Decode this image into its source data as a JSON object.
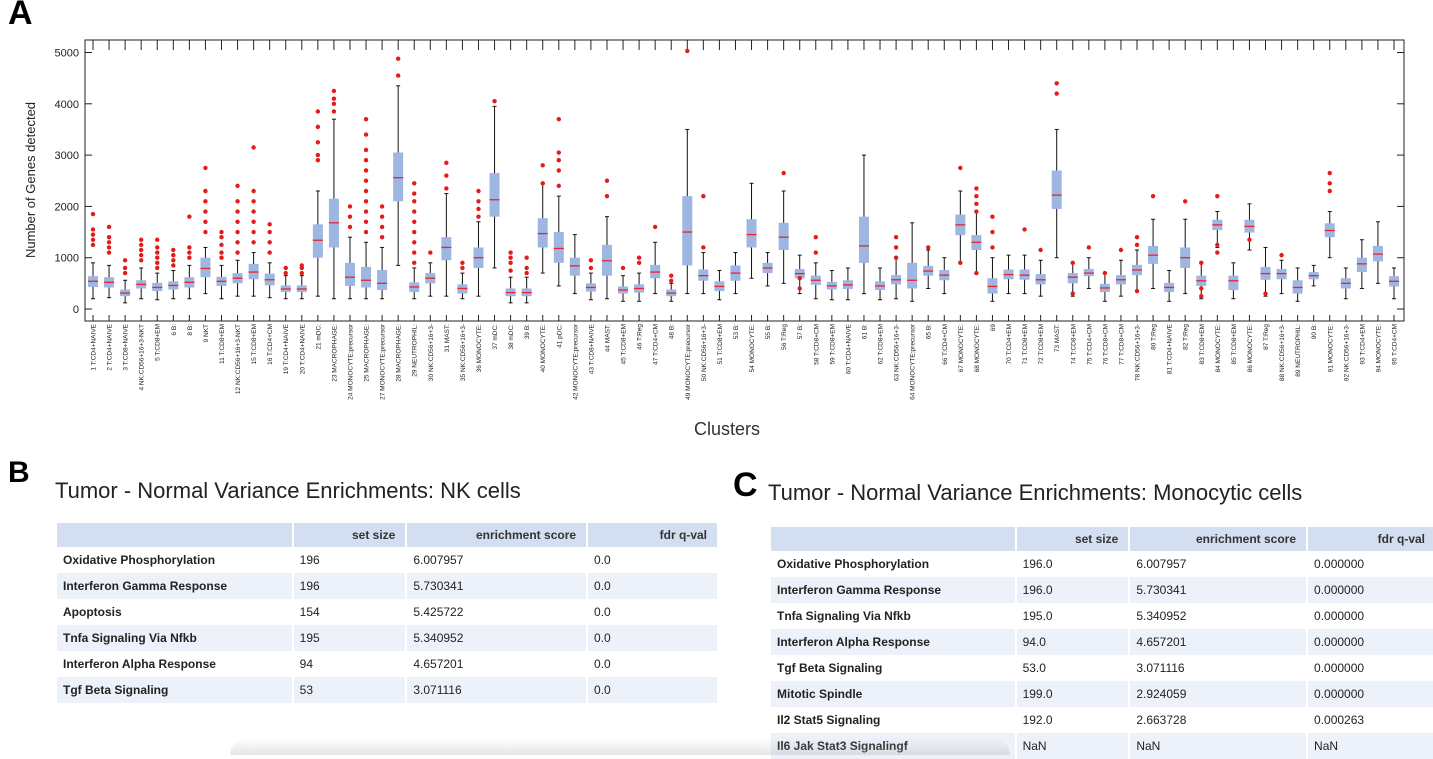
{
  "panel_labels": {
    "a": "A",
    "b": "B",
    "c": "C"
  },
  "chart_data": {
    "type": "box",
    "title": "",
    "xlabel": "Clusters",
    "ylabel": "Number of Genes detected",
    "ylim": [
      -100,
      5200
    ],
    "yticks": [
      0,
      1000,
      2000,
      3000,
      4000,
      5000
    ],
    "colors": {
      "box": "#9db6e2",
      "median": "#e8242f",
      "outlier": "#e31b1b",
      "whisker": "#111111"
    },
    "categories": [
      "1 T:CD4+NAIVE",
      "2 T:CD4+NAIVE",
      "3 T:CD8+NAIVE",
      "4 NK:CD56+16+3-NKT",
      "5 T:CD8+EM",
      "6 B:",
      "8 B:",
      "9 NKT",
      "11 T:CD8+EM",
      "12 NK:CD56+16+3-NKT",
      "15 T:CD8+EM",
      "16 T:CD4+CM",
      "19 T:CD4+NAIVE",
      "20 T:CD4+NAIVE",
      "21 mDC:",
      "23 MACROPHAGE:",
      "24 MONOCYTE:precursor",
      "25 MACROPHAGE:",
      "27 MONOCYTE:precursor",
      "28 MACROPHAGE:",
      "29 NEUTROPHIL:",
      "30 NK:CD56+16+3-",
      "31 MAST:",
      "35 NK:CD56+16+3-",
      "36 MONOCYTE:",
      "37 mDC:",
      "38 mDC:",
      "39 B:",
      "40 MONOCYTE:",
      "41 pDC:",
      "42 MONOCYTE:precursor",
      "43 T:CD8+NAIVE",
      "44 MAST:",
      "45 T:CD8+EM",
      "46 T:Reg",
      "47 T:CD4+CM",
      "48 B:",
      "49 MONOCYTE:precursor",
      "50 NK:CD56+16+3-",
      "51 T:CD8+EM",
      "53 B:",
      "54 MONOCYTE:",
      "55 B:",
      "56 T:Reg",
      "57 B:",
      "58 T:CD8+CM",
      "59 T:CD8+EM",
      "60 T:CD4+NAIVE",
      "61 B:",
      "62 T:CD8+EM",
      "63 NK:CD56+16+3-",
      "64 MONOCYTE:precursor",
      "65 B:",
      "66 T:CD4+CM",
      "67 MONOCYTE:",
      "68 MONOCYTE:",
      "69",
      "70 T:CD4+EM",
      "71 T:CD8+EM",
      "72 T:CD8+EM",
      "73 MAST:",
      "74 T:CD8+EM",
      "75 T:CD4+CM",
      "76 T:CD8+CM",
      "77 T:CD8+CM",
      "78 NK:CD56+16+3-",
      "80 T:Reg",
      "81 T:CD4+NAIVE",
      "82 T:Reg",
      "83 T:CD8+EM",
      "84 MONOCYTE:",
      "85 T:CD8+EM",
      "86 MONOCYTE:",
      "87 T:Reg",
      "88 NK:CD56+16+3-",
      "89 NEUTROPHIL:",
      "90 B:",
      "91 MONOCYTE:",
      "92 NK:CD56+16+3-",
      "93 T:CD4+EM",
      "94 MONOCYTE:",
      "95 T:CD4+CM"
    ],
    "boxes": [
      {
        "q1": 430,
        "med": 540,
        "q3": 640,
        "lo": 200,
        "hi": 900
      },
      {
        "q1": 420,
        "med": 520,
        "q3": 620,
        "lo": 220,
        "hi": 850
      },
      {
        "q1": 250,
        "med": 310,
        "q3": 380,
        "lo": 120,
        "hi": 560
      },
      {
        "q1": 400,
        "med": 480,
        "q3": 560,
        "lo": 200,
        "hi": 800
      },
      {
        "q1": 350,
        "med": 420,
        "q3": 510,
        "lo": 180,
        "hi": 700
      },
      {
        "q1": 380,
        "med": 460,
        "q3": 540,
        "lo": 200,
        "hi": 750
      },
      {
        "q1": 420,
        "med": 520,
        "q3": 620,
        "lo": 200,
        "hi": 850
      },
      {
        "q1": 620,
        "med": 790,
        "q3": 1000,
        "lo": 300,
        "hi": 1200
      },
      {
        "q1": 450,
        "med": 540,
        "q3": 630,
        "lo": 200,
        "hi": 850
      },
      {
        "q1": 500,
        "med": 600,
        "q3": 700,
        "lo": 250,
        "hi": 950
      },
      {
        "q1": 580,
        "med": 720,
        "q3": 880,
        "lo": 250,
        "hi": 1100
      },
      {
        "q1": 460,
        "med": 570,
        "q3": 690,
        "lo": 220,
        "hi": 900
      },
      {
        "q1": 330,
        "med": 390,
        "q3": 460,
        "lo": 200,
        "hi": 650
      },
      {
        "q1": 330,
        "med": 390,
        "q3": 460,
        "lo": 200,
        "hi": 650
      },
      {
        "q1": 1000,
        "med": 1340,
        "q3": 1650,
        "lo": 250,
        "hi": 2300
      },
      {
        "q1": 1200,
        "med": 1680,
        "q3": 2150,
        "lo": 200,
        "hi": 3700
      },
      {
        "q1": 450,
        "med": 620,
        "q3": 900,
        "lo": 200,
        "hi": 1400
      },
      {
        "q1": 420,
        "med": 560,
        "q3": 820,
        "lo": 200,
        "hi": 1300
      },
      {
        "q1": 370,
        "med": 500,
        "q3": 760,
        "lo": 200,
        "hi": 1200
      },
      {
        "q1": 2100,
        "med": 2560,
        "q3": 3050,
        "lo": 850,
        "hi": 4350
      },
      {
        "q1": 330,
        "med": 430,
        "q3": 520,
        "lo": 200,
        "hi": 800
      },
      {
        "q1": 500,
        "med": 600,
        "q3": 700,
        "lo": 250,
        "hi": 900
      },
      {
        "q1": 950,
        "med": 1200,
        "q3": 1400,
        "lo": 250,
        "hi": 2250
      },
      {
        "q1": 300,
        "med": 400,
        "q3": 480,
        "lo": 200,
        "hi": 700
      },
      {
        "q1": 800,
        "med": 1000,
        "q3": 1200,
        "lo": 250,
        "hi": 1700
      },
      {
        "q1": 1800,
        "med": 2130,
        "q3": 2650,
        "lo": 800,
        "hi": 3950
      },
      {
        "q1": 250,
        "med": 320,
        "q3": 400,
        "lo": 120,
        "hi": 620
      },
      {
        "q1": 250,
        "med": 320,
        "q3": 400,
        "lo": 120,
        "hi": 620
      },
      {
        "q1": 1200,
        "med": 1470,
        "q3": 1770,
        "lo": 700,
        "hi": 2450
      },
      {
        "q1": 900,
        "med": 1180,
        "q3": 1500,
        "lo": 450,
        "hi": 2200
      },
      {
        "q1": 650,
        "med": 840,
        "q3": 1000,
        "lo": 300,
        "hi": 1450
      },
      {
        "q1": 340,
        "med": 420,
        "q3": 500,
        "lo": 180,
        "hi": 700
      },
      {
        "q1": 650,
        "med": 940,
        "q3": 1250,
        "lo": 200,
        "hi": 1800
      },
      {
        "q1": 300,
        "med": 370,
        "q3": 440,
        "lo": 150,
        "hi": 650
      },
      {
        "q1": 320,
        "med": 400,
        "q3": 480,
        "lo": 150,
        "hi": 700
      },
      {
        "q1": 600,
        "med": 720,
        "q3": 860,
        "lo": 300,
        "hi": 1300
      },
      {
        "q1": 250,
        "med": 310,
        "q3": 380,
        "lo": 150,
        "hi": 500
      },
      {
        "q1": 850,
        "med": 1500,
        "q3": 2200,
        "lo": 300,
        "hi": 3500
      },
      {
        "q1": 550,
        "med": 650,
        "q3": 770,
        "lo": 300,
        "hi": 1100
      },
      {
        "q1": 350,
        "med": 440,
        "q3": 540,
        "lo": 180,
        "hi": 750
      },
      {
        "q1": 550,
        "med": 700,
        "q3": 850,
        "lo": 300,
        "hi": 1100
      },
      {
        "q1": 1200,
        "med": 1450,
        "q3": 1750,
        "lo": 600,
        "hi": 2450
      },
      {
        "q1": 700,
        "med": 800,
        "q3": 900,
        "lo": 450,
        "hi": 1100
      },
      {
        "q1": 1150,
        "med": 1400,
        "q3": 1680,
        "lo": 500,
        "hi": 2300
      },
      {
        "q1": 600,
        "med": 690,
        "q3": 780,
        "lo": 300,
        "hi": 1050
      },
      {
        "q1": 470,
        "med": 560,
        "q3": 650,
        "lo": 200,
        "hi": 900
      },
      {
        "q1": 380,
        "med": 450,
        "q3": 530,
        "lo": 180,
        "hi": 750
      },
      {
        "q1": 390,
        "med": 470,
        "q3": 560,
        "lo": 180,
        "hi": 800
      },
      {
        "q1": 900,
        "med": 1230,
        "q3": 1800,
        "lo": 300,
        "hi": 3000
      },
      {
        "q1": 370,
        "med": 450,
        "q3": 540,
        "lo": 180,
        "hi": 800
      },
      {
        "q1": 480,
        "med": 570,
        "q3": 660,
        "lo": 200,
        "hi": 1000
      },
      {
        "q1": 400,
        "med": 560,
        "q3": 900,
        "lo": 150,
        "hi": 1680
      },
      {
        "q1": 650,
        "med": 740,
        "q3": 840,
        "lo": 400,
        "hi": 1150
      },
      {
        "q1": 560,
        "med": 660,
        "q3": 760,
        "lo": 300,
        "hi": 1000
      },
      {
        "q1": 1440,
        "med": 1640,
        "q3": 1840,
        "lo": 900,
        "hi": 2300
      },
      {
        "q1": 1150,
        "med": 1300,
        "q3": 1440,
        "lo": 700,
        "hi": 1900
      },
      {
        "q1": 300,
        "med": 440,
        "q3": 600,
        "lo": 150,
        "hi": 1000
      },
      {
        "q1": 580,
        "med": 670,
        "q3": 770,
        "lo": 300,
        "hi": 1050
      },
      {
        "q1": 570,
        "med": 660,
        "q3": 770,
        "lo": 300,
        "hi": 1050
      },
      {
        "q1": 480,
        "med": 570,
        "q3": 680,
        "lo": 250,
        "hi": 950
      },
      {
        "q1": 1950,
        "med": 2220,
        "q3": 2700,
        "lo": 1000,
        "hi": 3500
      },
      {
        "q1": 500,
        "med": 620,
        "q3": 700,
        "lo": 250,
        "hi": 900
      },
      {
        "q1": 640,
        "med": 700,
        "q3": 780,
        "lo": 400,
        "hi": 1000
      },
      {
        "q1": 330,
        "med": 410,
        "q3": 490,
        "lo": 150,
        "hi": 700
      },
      {
        "q1": 480,
        "med": 570,
        "q3": 660,
        "lo": 250,
        "hi": 950
      },
      {
        "q1": 660,
        "med": 760,
        "q3": 860,
        "lo": 350,
        "hi": 1150
      },
      {
        "q1": 880,
        "med": 1050,
        "q3": 1230,
        "lo": 400,
        "hi": 1750
      },
      {
        "q1": 330,
        "med": 420,
        "q3": 510,
        "lo": 150,
        "hi": 750
      },
      {
        "q1": 800,
        "med": 1000,
        "q3": 1200,
        "lo": 300,
        "hi": 1750
      },
      {
        "q1": 450,
        "med": 550,
        "q3": 650,
        "lo": 200,
        "hi": 900
      },
      {
        "q1": 1540,
        "med": 1640,
        "q3": 1740,
        "lo": 1200,
        "hi": 1900
      },
      {
        "q1": 370,
        "med": 550,
        "q3": 650,
        "lo": 200,
        "hi": 900
      },
      {
        "q1": 1490,
        "med": 1610,
        "q3": 1740,
        "lo": 1150,
        "hi": 2050
      },
      {
        "q1": 570,
        "med": 690,
        "q3": 820,
        "lo": 250,
        "hi": 1200
      },
      {
        "q1": 580,
        "med": 690,
        "q3": 780,
        "lo": 300,
        "hi": 950
      },
      {
        "q1": 300,
        "med": 420,
        "q3": 560,
        "lo": 150,
        "hi": 800
      },
      {
        "q1": 580,
        "med": 650,
        "q3": 720,
        "lo": 450,
        "hi": 850
      },
      {
        "q1": 1400,
        "med": 1530,
        "q3": 1670,
        "lo": 1000,
        "hi": 1900
      },
      {
        "q1": 400,
        "med": 500,
        "q3": 600,
        "lo": 200,
        "hi": 800
      },
      {
        "q1": 720,
        "med": 880,
        "q3": 1000,
        "lo": 400,
        "hi": 1350
      },
      {
        "q1": 930,
        "med": 1070,
        "q3": 1230,
        "lo": 500,
        "hi": 1700
      },
      {
        "q1": 440,
        "med": 540,
        "q3": 640,
        "lo": 200,
        "hi": 800
      }
    ],
    "outliers": [
      {
        "i": 0,
        "y": [
          1250,
          1350,
          1450,
          1550,
          1850
        ]
      },
      {
        "i": 1,
        "y": [
          1100,
          1200,
          1300,
          1400,
          1600
        ]
      },
      {
        "i": 2,
        "y": [
          700,
          800,
          950
        ]
      },
      {
        "i": 3,
        "y": [
          950,
          1050,
          1150,
          1250,
          1350
        ]
      },
      {
        "i": 4,
        "y": [
          800,
          900,
          1000,
          1100,
          1200,
          1350
        ]
      },
      {
        "i": 5,
        "y": [
          850,
          950,
          1050,
          1150
        ]
      },
      {
        "i": 6,
        "y": [
          1000,
          1100,
          1200,
          1800
        ]
      },
      {
        "i": 7,
        "y": [
          1500,
          1700,
          1900,
          2100,
          2300,
          2750
        ]
      },
      {
        "i": 8,
        "y": [
          1000,
          1100,
          1250,
          1400,
          1500
        ]
      },
      {
        "i": 9,
        "y": [
          1100,
          1300,
          1500,
          1700,
          1900,
          2100,
          2400
        ]
      },
      {
        "i": 10,
        "y": [
          1300,
          1500,
          1700,
          1900,
          2100,
          2300,
          3150
        ]
      },
      {
        "i": 11,
        "y": [
          1100,
          1300,
          1500,
          1650
        ]
      },
      {
        "i": 12,
        "y": [
          700,
          800
        ]
      },
      {
        "i": 13,
        "y": [
          700,
          800,
          850
        ]
      },
      {
        "i": 14,
        "y": [
          2900,
          3000,
          3250,
          3550,
          3850
        ]
      },
      {
        "i": 15,
        "y": [
          3850,
          4000,
          4100,
          4250
        ]
      },
      {
        "i": 16,
        "y": [
          1600,
          1800,
          2000
        ]
      },
      {
        "i": 17,
        "y": [
          1500,
          1700,
          1900,
          2100,
          2300,
          2500,
          2700,
          2900,
          3100,
          3400,
          3700
        ]
      },
      {
        "i": 18,
        "y": [
          1400,
          1600,
          1800,
          2000
        ]
      },
      {
        "i": 19,
        "y": [
          4550,
          4880
        ]
      },
      {
        "i": 20,
        "y": [
          900,
          1100,
          1300,
          1500,
          1700,
          1900,
          2100,
          2250,
          2450
        ]
      },
      {
        "i": 21,
        "y": [
          1100
        ]
      },
      {
        "i": 22,
        "y": [
          2350,
          2600,
          2850
        ]
      },
      {
        "i": 23,
        "y": [
          800,
          900
        ]
      },
      {
        "i": 24,
        "y": [
          1800,
          1950,
          2100,
          2300
        ]
      },
      {
        "i": 25,
        "y": [
          4050
        ]
      },
      {
        "i": 26,
        "y": [
          750,
          900,
          1000,
          1100
        ]
      },
      {
        "i": 27,
        "y": [
          700,
          800,
          1000
        ]
      },
      {
        "i": 28,
        "y": [
          2450,
          2800
        ]
      },
      {
        "i": 29,
        "y": [
          2400,
          2700,
          2900,
          3050,
          3700
        ]
      },
      {
        "i": 31,
        "y": [
          800,
          950
        ]
      },
      {
        "i": 32,
        "y": [
          2200,
          2500
        ]
      },
      {
        "i": 33,
        "y": [
          800
        ]
      },
      {
        "i": 34,
        "y": [
          900,
          1000
        ]
      },
      {
        "i": 35,
        "y": [
          1600
        ]
      },
      {
        "i": 36,
        "y": [
          550,
          650
        ]
      },
      {
        "i": 37,
        "y": [
          5030
        ]
      },
      {
        "i": 38,
        "y": [
          1200,
          2200
        ]
      },
      {
        "i": 43,
        "y": [
          2650
        ]
      },
      {
        "i": 44,
        "y": [
          400,
          600
        ]
      },
      {
        "i": 45,
        "y": [
          1100,
          1400
        ]
      },
      {
        "i": 50,
        "y": [
          1000,
          1200,
          1400
        ]
      },
      {
        "i": 52,
        "y": [
          1200
        ]
      },
      {
        "i": 54,
        "y": [
          900,
          2750
        ]
      },
      {
        "i": 55,
        "y": [
          700,
          1900,
          2050,
          2200,
          2350
        ]
      },
      {
        "i": 56,
        "y": [
          1200,
          1500,
          1800
        ]
      },
      {
        "i": 58,
        "y": [
          1550
        ]
      },
      {
        "i": 59,
        "y": [
          1150
        ]
      },
      {
        "i": 60,
        "y": [
          4200,
          4400
        ]
      },
      {
        "i": 61,
        "y": [
          300,
          900
        ]
      },
      {
        "i": 62,
        "y": [
          1200
        ]
      },
      {
        "i": 63,
        "y": [
          700
        ]
      },
      {
        "i": 64,
        "y": [
          1150
        ]
      },
      {
        "i": 65,
        "y": [
          350,
          1250,
          1400
        ]
      },
      {
        "i": 66,
        "y": [
          2200
        ]
      },
      {
        "i": 68,
        "y": [
          2100
        ]
      },
      {
        "i": 69,
        "y": [
          250,
          400,
          900
        ]
      },
      {
        "i": 70,
        "y": [
          1100,
          1250,
          2200
        ]
      },
      {
        "i": 72,
        "y": [
          1350
        ]
      },
      {
        "i": 73,
        "y": [
          300
        ]
      },
      {
        "i": 74,
        "y": [
          1050
        ]
      },
      {
        "i": 77,
        "y": [
          2300,
          2450,
          2650
        ]
      }
    ]
  },
  "table_b": {
    "title": "Tumor - Normal Variance Enrichments: NK cells",
    "columns": [
      "",
      "set size",
      "enrichment score",
      "fdr q-val"
    ],
    "rows": [
      [
        "Oxidative Phosphorylation",
        "196",
        "6.007957",
        "0.0"
      ],
      [
        "Interferon Gamma Response",
        "196",
        "5.730341",
        "0.0"
      ],
      [
        "Apoptosis",
        "154",
        "5.425722",
        "0.0"
      ],
      [
        "Tnfa Signaling Via Nfkb",
        "195",
        "5.340952",
        "0.0"
      ],
      [
        "Interferon Alpha Response",
        "94",
        "4.657201",
        "0.0"
      ],
      [
        "Tgf Beta Signaling",
        "53",
        "3.071116",
        "0.0"
      ]
    ]
  },
  "table_c": {
    "title": "Tumor - Normal Variance Enrichments: Monocytic cells",
    "columns": [
      "",
      "set size",
      "enrichment score",
      "fdr q-val"
    ],
    "rows": [
      [
        "Oxidative Phosphorylation",
        "196.0",
        "6.007957",
        "0.000000"
      ],
      [
        "Interferon Gamma Response",
        "196.0",
        "5.730341",
        "0.000000"
      ],
      [
        "Tnfa Signaling Via Nfkb",
        "195.0",
        "5.340952",
        "0.000000"
      ],
      [
        "Interferon Alpha Response",
        "94.0",
        "4.657201",
        "0.000000"
      ],
      [
        "Tgf Beta Signaling",
        "53.0",
        "3.071116",
        "0.000000"
      ],
      [
        "Mitotic Spindle",
        "199.0",
        "2.924059",
        "0.000000"
      ],
      [
        "Il2 Stat5 Signaling",
        "192.0",
        "2.663728",
        "0.000263"
      ],
      [
        "Il6 Jak Stat3 Signalingf",
        "NaN",
        "NaN",
        "NaN"
      ]
    ]
  }
}
